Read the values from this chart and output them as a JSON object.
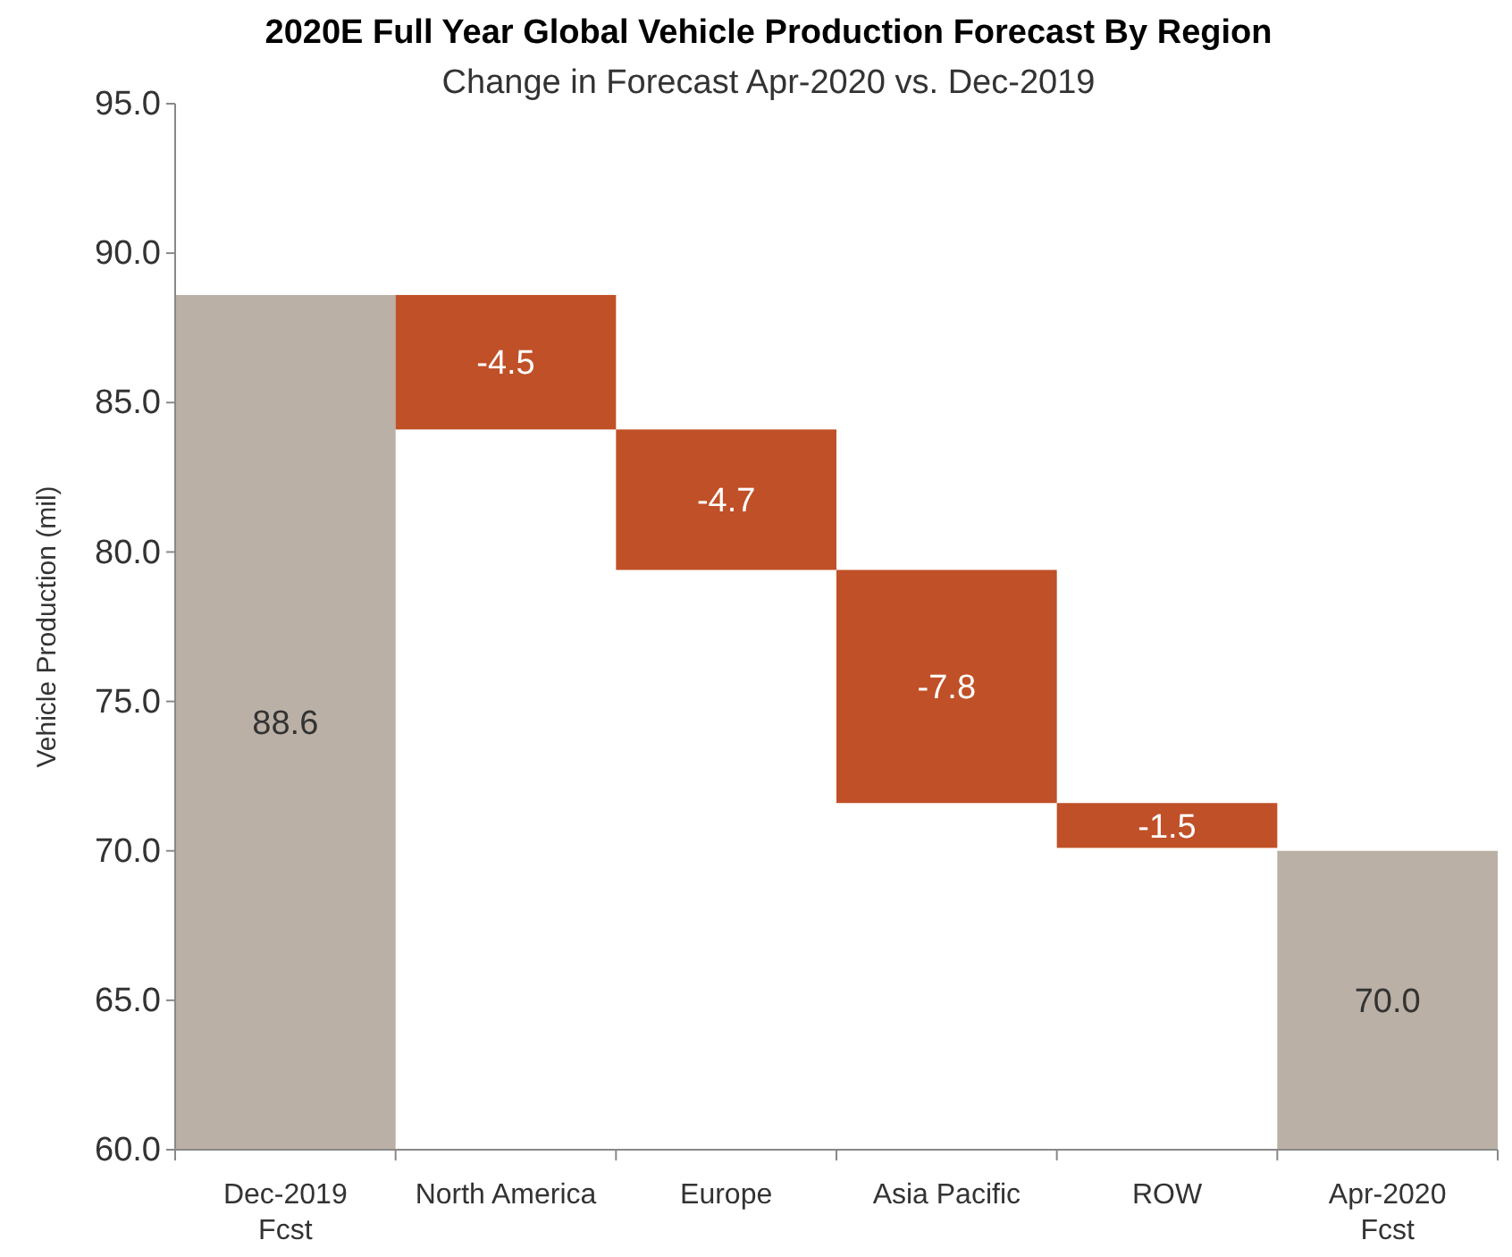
{
  "chart_data": {
    "type": "bar",
    "title": "2020E Full Year Global Vehicle Production Forecast By Region",
    "subtitle": "Change in Forecast Apr-2020 vs. Dec-2019",
    "ylabel": "Vehicle Production (mil)",
    "categories": [
      "Dec-2019\nFcst",
      "North America",
      "Europe",
      "Asia Pacific",
      "ROW",
      "Apr-2020\nFcst"
    ],
    "values": [
      88.6,
      -4.5,
      -4.7,
      -7.8,
      -1.5,
      70.0
    ],
    "base": [
      null,
      88.6,
      84.1,
      79.4,
      71.6,
      null
    ],
    "colors": [
      "#bab0a6",
      "#c05027",
      "#c05027",
      "#c05027",
      "#c05027",
      "#bab0a6"
    ],
    "ylim": [
      60,
      95
    ],
    "yticks": [
      {
        "value": 60,
        "label": "60.0"
      },
      {
        "value": 65,
        "label": "65.0"
      },
      {
        "value": 70,
        "label": "70.0"
      },
      {
        "value": 75,
        "label": "75.0"
      },
      {
        "value": 80,
        "label": "80.0"
      },
      {
        "value": 85,
        "label": "85.0"
      },
      {
        "value": 90,
        "label": "90.0"
      },
      {
        "value": 95,
        "label": "95.0"
      }
    ],
    "value_labels": [
      "88.6",
      "-4.5",
      "-4.7",
      "-7.8",
      "-1.5",
      "70.0"
    ],
    "grid": false
  }
}
